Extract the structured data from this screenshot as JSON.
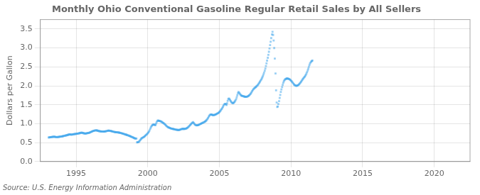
{
  "chart_data": {
    "type": "scatter",
    "title": "Monthly Ohio Conventional Gasoline Regular Retail Sales by All Sellers",
    "ylabel": "Dollars per Gallon",
    "annotation": "Source: U.S. Energy Information Administration",
    "xlim": [
      1992.5,
      2022.5
    ],
    "ylim": [
      0.0,
      3.75
    ],
    "xticks": [
      1995,
      2000,
      2005,
      2010,
      2015,
      2020
    ],
    "yticks": [
      {
        "value": 0.0,
        "label": "0.0"
      },
      0.5,
      {
        "value": 1.0,
        "label": "1.0"
      },
      1.5,
      {
        "value": 2.0,
        "label": "2.0"
      },
      2.5,
      {
        "value": 3.0,
        "label": "3.0"
      },
      3.5
    ],
    "grid": true,
    "marker": "square",
    "x": [
      1993.08,
      1993.12,
      1993.17,
      1993.21,
      1993.25,
      1993.29,
      1993.33,
      1993.38,
      1993.42,
      1993.46,
      1993.5,
      1993.54,
      1993.58,
      1993.62,
      1993.67,
      1993.71,
      1993.75,
      1993.79,
      1993.83,
      1993.87,
      1993.92,
      1993.96,
      1994.0,
      1994.04,
      1994.08,
      1994.12,
      1994.17,
      1994.21,
      1994.25,
      1994.29,
      1994.33,
      1994.38,
      1994.42,
      1994.46,
      1994.5,
      1994.54,
      1994.58,
      1994.62,
      1994.67,
      1994.71,
      1994.75,
      1994.79,
      1994.83,
      1994.87,
      1994.92,
      1994.96,
      1995.0,
      1995.04,
      1995.08,
      1995.12,
      1995.17,
      1995.21,
      1995.25,
      1995.29,
      1995.33,
      1995.38,
      1995.42,
      1995.46,
      1995.5,
      1995.54,
      1995.58,
      1995.62,
      1995.67,
      1995.71,
      1995.75,
      1995.79,
      1995.83,
      1995.87,
      1995.92,
      1995.96,
      1996.0,
      1996.04,
      1996.08,
      1996.12,
      1996.17,
      1996.21,
      1996.25,
      1996.29,
      1996.33,
      1996.38,
      1996.42,
      1996.46,
      1996.5,
      1996.54,
      1996.58,
      1996.62,
      1996.67,
      1996.71,
      1996.75,
      1996.79,
      1996.83,
      1996.87,
      1996.92,
      1996.96,
      1997.0,
      1997.04,
      1997.08,
      1997.12,
      1997.17,
      1997.21,
      1997.25,
      1997.29,
      1997.33,
      1997.38,
      1997.42,
      1997.46,
      1997.5,
      1997.54,
      1997.58,
      1997.62,
      1997.67,
      1997.71,
      1997.75,
      1997.79,
      1997.83,
      1997.87,
      1997.92,
      1997.96,
      1998.0,
      1998.04,
      1998.08,
      1998.12,
      1998.17,
      1998.21,
      1998.25,
      1998.29,
      1998.33,
      1998.38,
      1998.42,
      1998.46,
      1998.5,
      1998.54,
      1998.58,
      1998.62,
      1998.67,
      1998.71,
      1998.75,
      1998.79,
      1998.83,
      1998.87,
      1998.92,
      1998.96,
      1999.0,
      1999.04,
      1999.08,
      1999.12,
      1999.17,
      1999.21,
      1999.25,
      1999.29,
      1999.33,
      1999.38,
      1999.42,
      1999.46,
      1999.5,
      1999.54,
      1999.58,
      1999.62,
      1999.67,
      1999.71,
      1999.75,
      1999.79,
      1999.83,
      1999.87,
      1999.92,
      1999.96,
      2000.0,
      2000.04,
      2000.08,
      2000.12,
      2000.17,
      2000.21,
      2000.25,
      2000.29,
      2000.33,
      2000.38,
      2000.42,
      2000.46,
      2000.5,
      2000.54,
      2000.58,
      2000.62,
      2000.67,
      2000.71,
      2000.75,
      2000.79,
      2000.83,
      2000.87,
      2000.92,
      2000.96,
      2001.0,
      2001.04,
      2001.08,
      2001.12,
      2001.17,
      2001.21,
      2001.25,
      2001.29,
      2001.33,
      2001.38,
      2001.42,
      2001.46,
      2001.5,
      2001.54,
      2001.58,
      2001.62,
      2001.67,
      2001.71,
      2001.75,
      2001.79,
      2001.83,
      2001.87,
      2001.92,
      2001.96,
      2002.0,
      2002.04,
      2002.08,
      2002.12,
      2002.17,
      2002.21,
      2002.25,
      2002.29,
      2002.33,
      2002.38,
      2002.42,
      2002.46,
      2002.5,
      2002.54,
      2002.58,
      2002.62,
      2002.67,
      2002.71,
      2002.75,
      2002.79,
      2002.83,
      2002.87,
      2002.92,
      2002.96,
      2003.0,
      2003.04,
      2003.08,
      2003.12,
      2003.17,
      2003.21,
      2003.25,
      2003.29,
      2003.33,
      2003.38,
      2003.42,
      2003.46,
      2003.5,
      2003.54,
      2003.58,
      2003.62,
      2003.67,
      2003.71,
      2003.75,
      2003.79,
      2003.83,
      2003.87,
      2003.92,
      2003.96,
      2004.0,
      2004.04,
      2004.08,
      2004.12,
      2004.17,
      2004.21,
      2004.25,
      2004.29,
      2004.33,
      2004.38,
      2004.42,
      2004.46,
      2004.5,
      2004.54,
      2004.58,
      2004.62,
      2004.67,
      2004.71,
      2004.75,
      2004.79,
      2004.83,
      2004.87,
      2004.92,
      2004.96,
      2005.0,
      2005.04,
      2005.08,
      2005.12,
      2005.17,
      2005.21,
      2005.25,
      2005.29,
      2005.33,
      2005.38,
      2005.42,
      2005.46,
      2005.5,
      2005.54,
      2005.58,
      2005.62,
      2005.67,
      2005.71,
      2005.75,
      2005.79,
      2005.83,
      2005.87,
      2005.92,
      2005.96,
      2006.0,
      2006.04,
      2006.08,
      2006.12,
      2006.17,
      2006.21,
      2006.25,
      2006.29,
      2006.33,
      2006.38,
      2006.42,
      2006.46,
      2006.5,
      2006.54,
      2006.58,
      2006.62,
      2006.67,
      2006.71,
      2006.75,
      2006.79,
      2006.83,
      2006.87,
      2006.92,
      2006.96,
      2007.0,
      2007.04,
      2007.08,
      2007.12,
      2007.17,
      2007.21,
      2007.25,
      2007.29,
      2007.33,
      2007.38,
      2007.42,
      2007.46,
      2007.5,
      2007.54,
      2007.58,
      2007.62,
      2007.67,
      2007.71,
      2007.75,
      2007.79,
      2007.83,
      2007.87,
      2007.92,
      2007.96,
      2008.0,
      2008.04,
      2008.08,
      2008.12,
      2008.17,
      2008.21,
      2008.25,
      2008.29,
      2008.33,
      2008.38,
      2008.42,
      2008.46,
      2008.5,
      2008.54,
      2008.58,
      2008.62,
      2008.67,
      2008.71,
      2008.75,
      2008.79,
      2008.83,
      2008.87,
      2008.92,
      2008.96,
      2009.0,
      2009.04,
      2009.08,
      2009.12,
      2009.17,
      2009.21,
      2009.25,
      2009.29,
      2009.33,
      2009.38,
      2009.42,
      2009.46,
      2009.5,
      2009.54,
      2009.58,
      2009.62,
      2009.67,
      2009.71,
      2009.75,
      2009.79,
      2009.83,
      2009.87,
      2009.92,
      2009.96,
      2010.0,
      2010.04,
      2010.08,
      2010.12,
      2010.17,
      2010.21,
      2010.25,
      2010.29,
      2010.33,
      2010.38,
      2010.42,
      2010.46,
      2010.5,
      2010.54,
      2010.58,
      2010.62,
      2010.67,
      2010.71,
      2010.75,
      2010.79,
      2010.83,
      2010.87,
      2010.92,
      2010.96,
      2011.0,
      2011.04,
      2011.08,
      2011.12,
      2011.17,
      2011.21,
      2011.25,
      2011.29,
      2011.33,
      2011.38,
      2011.42,
      2011.46,
      2011.5
    ],
    "values": [
      0.635,
      0.638,
      0.64,
      0.642,
      0.645,
      0.648,
      0.65,
      0.652,
      0.654,
      0.656,
      0.654,
      0.65,
      0.648,
      0.646,
      0.645,
      0.647,
      0.649,
      0.651,
      0.653,
      0.656,
      0.658,
      0.66,
      0.663,
      0.666,
      0.67,
      0.674,
      0.678,
      0.682,
      0.686,
      0.69,
      0.694,
      0.698,
      0.703,
      0.708,
      0.713,
      0.717,
      0.715,
      0.713,
      0.711,
      0.713,
      0.716,
      0.719,
      0.722,
      0.725,
      0.727,
      0.729,
      0.731,
      0.734,
      0.737,
      0.74,
      0.743,
      0.746,
      0.75,
      0.755,
      0.76,
      0.762,
      0.76,
      0.756,
      0.75,
      0.746,
      0.743,
      0.741,
      0.74,
      0.743,
      0.747,
      0.75,
      0.753,
      0.757,
      0.76,
      0.767,
      0.775,
      0.782,
      0.79,
      0.797,
      0.803,
      0.808,
      0.812,
      0.817,
      0.822,
      0.824,
      0.823,
      0.82,
      0.816,
      0.811,
      0.806,
      0.802,
      0.799,
      0.797,
      0.796,
      0.795,
      0.794,
      0.793,
      0.792,
      0.793,
      0.795,
      0.797,
      0.8,
      0.805,
      0.81,
      0.815,
      0.818,
      0.816,
      0.813,
      0.81,
      0.807,
      0.803,
      0.799,
      0.794,
      0.789,
      0.784,
      0.781,
      0.779,
      0.777,
      0.775,
      0.773,
      0.771,
      0.769,
      0.767,
      0.764,
      0.761,
      0.757,
      0.753,
      0.748,
      0.743,
      0.738,
      0.733,
      0.728,
      0.722,
      0.716,
      0.712,
      0.708,
      0.703,
      0.697,
      0.691,
      0.685,
      0.679,
      0.673,
      0.666,
      0.659,
      0.652,
      0.646,
      0.638,
      0.63,
      0.622,
      0.615,
      0.61,
      0.607,
      0.606,
      0.507,
      0.508,
      0.51,
      0.52,
      0.54,
      0.56,
      0.58,
      0.6,
      0.615,
      0.625,
      0.635,
      0.645,
      0.655,
      0.668,
      0.682,
      0.698,
      0.715,
      0.73,
      0.748,
      0.768,
      0.79,
      0.82,
      0.86,
      0.895,
      0.925,
      0.948,
      0.965,
      0.975,
      0.978,
      0.975,
      0.968,
      0.96,
      1.0,
      1.04,
      1.07,
      1.082,
      1.08,
      1.075,
      1.07,
      1.065,
      1.06,
      1.05,
      1.04,
      1.03,
      1.02,
      1.008,
      0.995,
      0.98,
      0.962,
      0.945,
      0.93,
      0.918,
      0.908,
      0.9,
      0.893,
      0.887,
      0.88,
      0.875,
      0.87,
      0.866,
      0.862,
      0.858,
      0.855,
      0.851,
      0.847,
      0.843,
      0.84,
      0.837,
      0.835,
      0.834,
      0.833,
      0.835,
      0.84,
      0.847,
      0.855,
      0.86,
      0.862,
      0.863,
      0.862,
      0.862,
      0.863,
      0.866,
      0.87,
      0.877,
      0.886,
      0.898,
      0.912,
      0.928,
      0.945,
      0.963,
      0.98,
      0.998,
      1.015,
      1.03,
      1.04,
      1.02,
      0.998,
      0.978,
      0.962,
      0.957,
      0.955,
      0.957,
      0.96,
      0.966,
      0.974,
      0.982,
      0.99,
      0.998,
      1.006,
      1.014,
      1.022,
      1.03,
      1.038,
      1.046,
      1.055,
      1.068,
      1.083,
      1.102,
      1.125,
      1.152,
      1.18,
      1.205,
      1.228,
      1.24,
      1.242,
      1.238,
      1.232,
      1.228,
      1.226,
      1.228,
      1.232,
      1.238,
      1.245,
      1.253,
      1.262,
      1.271,
      1.28,
      1.293,
      1.308,
      1.325,
      1.345,
      1.368,
      1.392,
      1.418,
      1.448,
      1.478,
      1.505,
      1.522,
      1.525,
      1.51,
      1.492,
      1.54,
      1.6,
      1.65,
      1.665,
      1.648,
      1.625,
      1.598,
      1.572,
      1.555,
      1.545,
      1.54,
      1.552,
      1.568,
      1.588,
      1.615,
      1.648,
      1.695,
      1.748,
      1.802,
      1.838,
      1.818,
      1.795,
      1.772,
      1.752,
      1.74,
      1.735,
      1.73,
      1.725,
      1.72,
      1.715,
      1.712,
      1.71,
      1.71,
      1.712,
      1.718,
      1.725,
      1.735,
      1.748,
      1.765,
      1.785,
      1.808,
      1.835,
      1.862,
      1.888,
      1.91,
      1.928,
      1.942,
      1.955,
      1.968,
      1.982,
      1.998,
      2.015,
      2.035,
      2.058,
      2.082,
      2.108,
      2.135,
      2.162,
      2.192,
      2.225,
      2.262,
      2.302,
      2.348,
      2.4,
      2.458,
      2.522,
      2.592,
      2.665,
      2.74,
      2.818,
      2.9,
      2.985,
      3.075,
      3.165,
      3.26,
      3.355,
      3.428,
      3.345,
      3.198,
      2.998,
      2.72,
      2.325,
      1.88,
      1.558,
      1.44,
      1.455,
      1.52,
      1.595,
      1.68,
      1.76,
      1.838,
      1.905,
      1.968,
      2.025,
      2.078,
      2.118,
      2.148,
      2.168,
      2.18,
      2.188,
      2.192,
      2.192,
      2.19,
      2.185,
      2.178,
      2.168,
      2.155,
      2.14,
      2.122,
      2.102,
      2.08,
      2.058,
      2.038,
      2.022,
      2.01,
      2.002,
      2.0,
      2.002,
      2.008,
      2.018,
      2.032,
      2.048,
      2.068,
      2.09,
      2.112,
      2.135,
      2.158,
      2.18,
      2.202,
      2.222,
      2.242,
      2.265,
      2.292,
      2.325,
      2.365,
      2.408,
      2.455,
      2.505,
      2.552,
      2.592,
      2.622,
      2.645,
      2.66,
      2.668
    ]
  }
}
